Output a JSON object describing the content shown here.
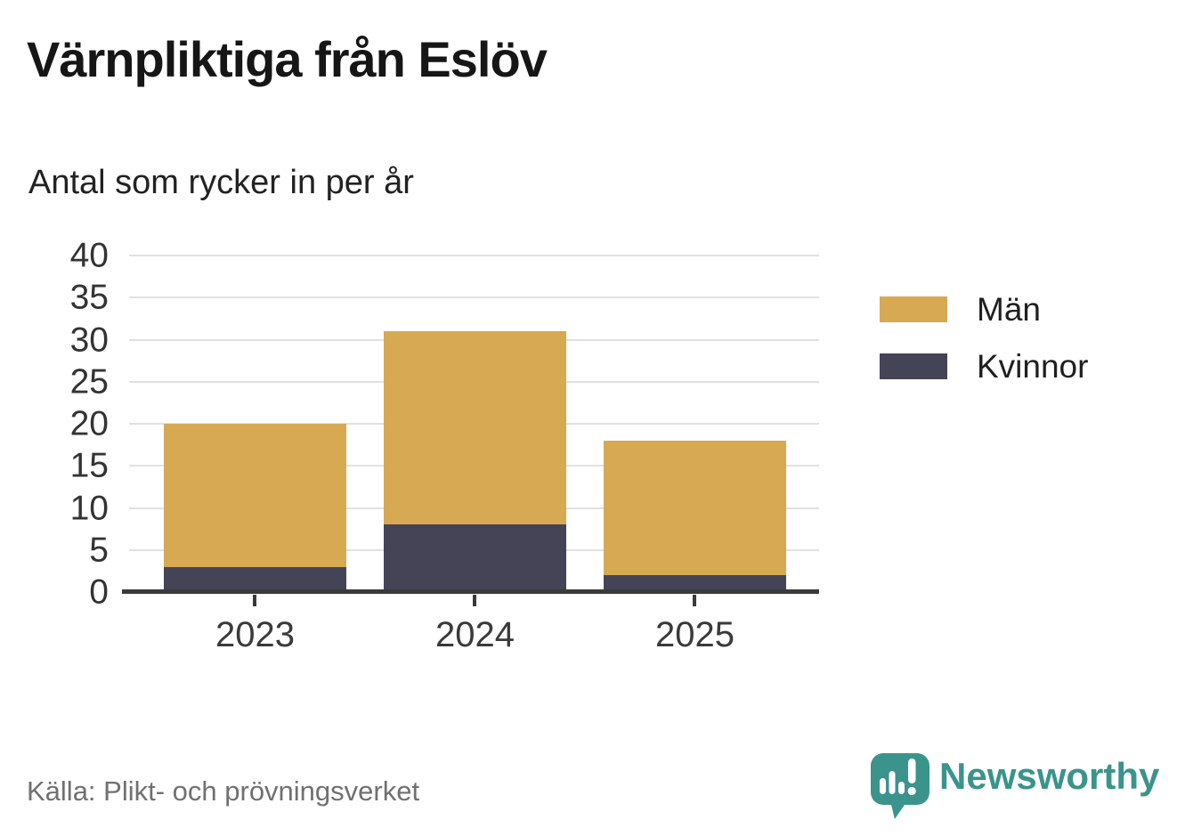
{
  "header": {
    "title": "Värnpliktiga från Eslöv",
    "subtitle": "Antal som rycker in per år"
  },
  "footer": {
    "source": "Källa: Plikt- och prövningsverket"
  },
  "branding": {
    "name": "Newsworthy",
    "color": "#3A948B",
    "icon": "newsworthy-speech-bubble-bar-chart-icon"
  },
  "colors": {
    "men": "#D6A952",
    "women": "#454356",
    "grid": "#E1E1E1",
    "axis": "#3A3A3A"
  },
  "chart_data": {
    "type": "bar",
    "stacked": true,
    "title": "Värnpliktiga från Eslöv",
    "subtitle": "Antal som rycker in per år",
    "categories": [
      "2023",
      "2024",
      "2025"
    ],
    "series": [
      {
        "name": "Män",
        "color": "#D6A952",
        "values": [
          17,
          23,
          16
        ]
      },
      {
        "name": "Kvinnor",
        "color": "#454356",
        "values": [
          3,
          8,
          2
        ]
      }
    ],
    "stack_totals": [
      20,
      31,
      18
    ],
    "ylim": [
      0,
      40
    ],
    "yticks": [
      0,
      5,
      10,
      15,
      20,
      25,
      30,
      35,
      40
    ],
    "grid": true,
    "legend_position": "right",
    "source": "Källa: Plikt- och prövningsverket"
  }
}
